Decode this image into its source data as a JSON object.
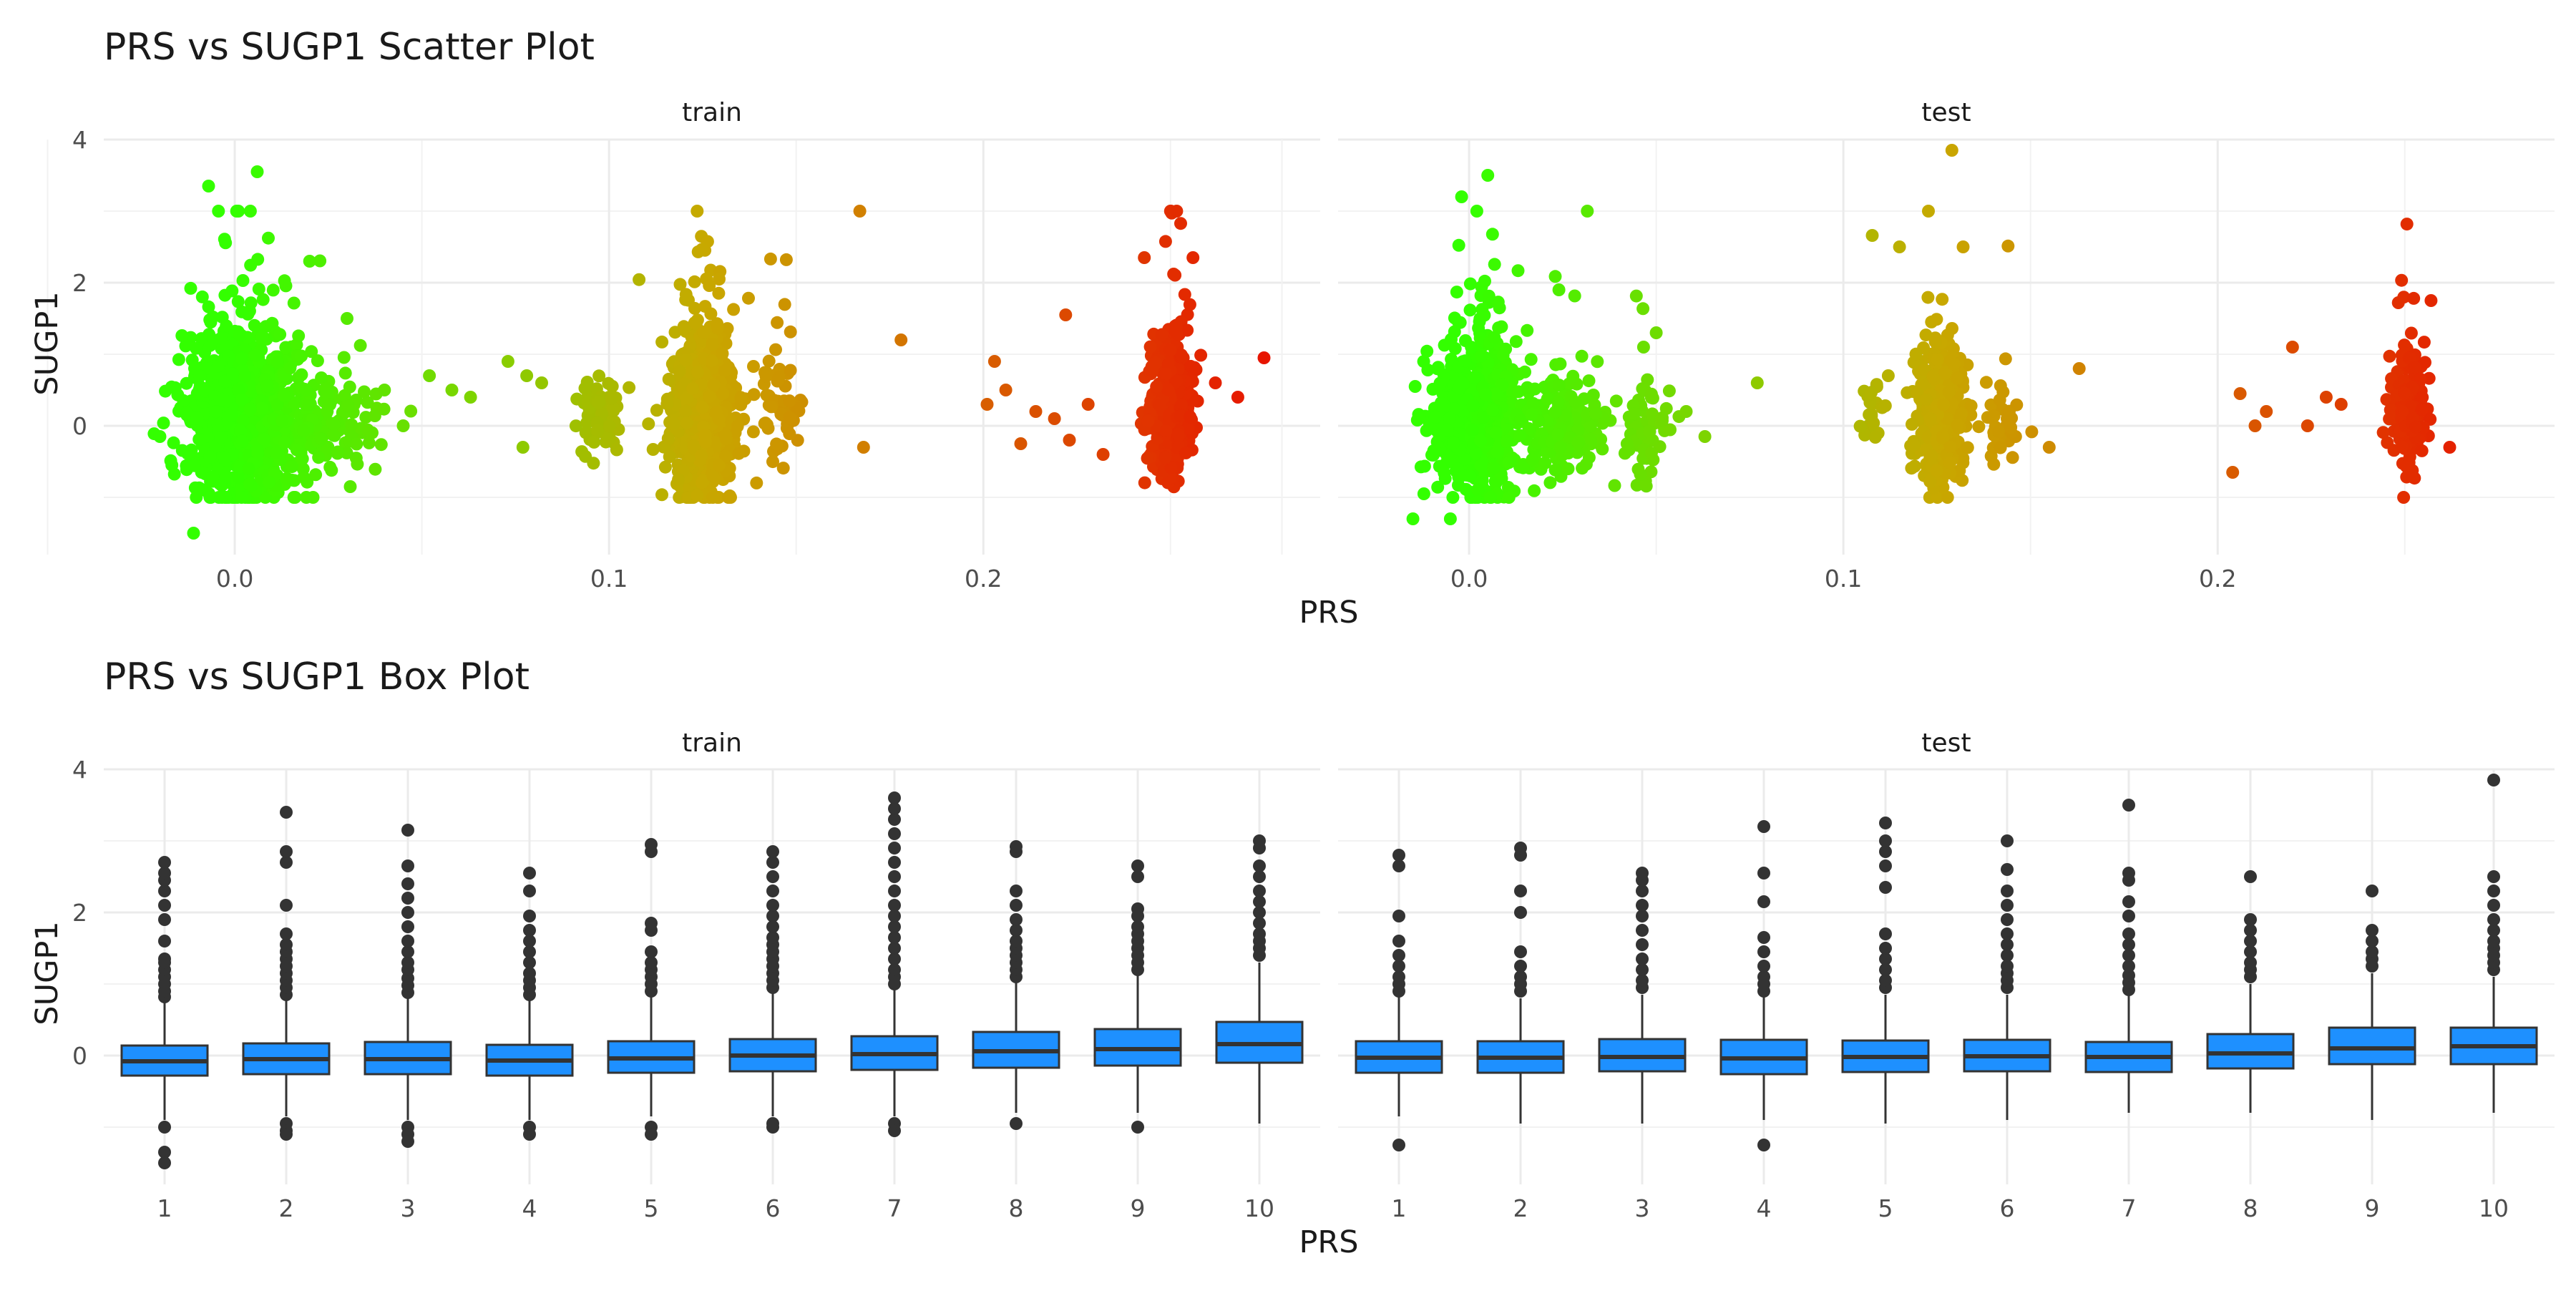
{
  "chart_data": [
    {
      "type": "scatter",
      "title": "PRS vs SUGP1 Scatter Plot",
      "xlabel": "PRS",
      "ylabel": "SUGP1",
      "xlim": [
        -0.035,
        0.29
      ],
      "ylim": [
        -1.8,
        4.0
      ],
      "x_ticks": [
        "0.0",
        "0.1",
        "0.2"
      ],
      "y_ticks": [
        "0",
        "2",
        "4"
      ],
      "color_gradient": {
        "low": "#33ff00",
        "mid": "#c8a800",
        "high": "#e81000",
        "range": [
          0,
          0.28
        ]
      },
      "facets": [
        {
          "label": "train",
          "clusters": [
            {
              "x_center": 0.002,
              "x_spread": 0.012,
              "y_center": 0.1,
              "y_spread": 0.55,
              "n": 950
            },
            {
              "x_center": 0.025,
              "x_spread": 0.012,
              "y_center": 0.0,
              "y_spread": 0.3,
              "n": 150
            },
            {
              "x_center": 0.125,
              "x_spread": 0.007,
              "y_center": 0.15,
              "y_spread": 0.55,
              "n": 850
            },
            {
              "x_center": 0.098,
              "x_spread": 0.005,
              "y_center": 0.1,
              "y_spread": 0.3,
              "n": 70
            },
            {
              "x_center": 0.145,
              "x_spread": 0.005,
              "y_center": 0.2,
              "y_spread": 0.35,
              "n": 60
            },
            {
              "x_center": 0.25,
              "x_spread": 0.005,
              "y_center": 0.25,
              "y_spread": 0.45,
              "n": 500
            }
          ],
          "points": [
            {
              "x": -0.02,
              "y": -0.15
            },
            {
              "x": -0.011,
              "y": -1.5
            },
            {
              "x": -0.007,
              "y": 3.35
            },
            {
              "x": 0.006,
              "y": 3.55
            },
            {
              "x": 0.02,
              "y": 2.3
            },
            {
              "x": 0.03,
              "y": 1.5
            },
            {
              "x": 0.04,
              "y": 0.5
            },
            {
              "x": 0.045,
              "y": 0.0
            },
            {
              "x": 0.052,
              "y": 0.7
            },
            {
              "x": 0.058,
              "y": 0.5
            },
            {
              "x": 0.063,
              "y": 0.4
            },
            {
              "x": 0.073,
              "y": 0.9
            },
            {
              "x": 0.078,
              "y": 0.7
            },
            {
              "x": 0.082,
              "y": 0.6
            },
            {
              "x": 0.077,
              "y": -0.3
            },
            {
              "x": 0.167,
              "y": 3.0
            },
            {
              "x": 0.168,
              "y": -0.3
            },
            {
              "x": 0.178,
              "y": 1.2
            },
            {
              "x": 0.201,
              "y": 0.3
            },
            {
              "x": 0.203,
              "y": 0.9
            },
            {
              "x": 0.206,
              "y": 0.5
            },
            {
              "x": 0.21,
              "y": -0.25
            },
            {
              "x": 0.214,
              "y": 0.2
            },
            {
              "x": 0.219,
              "y": 0.1
            },
            {
              "x": 0.222,
              "y": 1.55
            },
            {
              "x": 0.223,
              "y": -0.2
            },
            {
              "x": 0.228,
              "y": 0.3
            },
            {
              "x": 0.232,
              "y": -0.4
            },
            {
              "x": 0.243,
              "y": 2.35
            },
            {
              "x": 0.256,
              "y": 2.35
            },
            {
              "x": 0.262,
              "y": 0.6
            },
            {
              "x": 0.268,
              "y": 0.4
            },
            {
              "x": 0.275,
              "y": 0.95
            }
          ]
        },
        {
          "label": "test",
          "clusters": [
            {
              "x_center": 0.002,
              "x_spread": 0.01,
              "y_center": 0.1,
              "y_spread": 0.55,
              "n": 600
            },
            {
              "x_center": 0.025,
              "x_spread": 0.01,
              "y_center": 0.0,
              "y_spread": 0.3,
              "n": 180
            },
            {
              "x_center": 0.047,
              "x_spread": 0.005,
              "y_center": 0.0,
              "y_spread": 0.3,
              "n": 60
            },
            {
              "x_center": 0.126,
              "x_spread": 0.005,
              "y_center": 0.15,
              "y_spread": 0.5,
              "n": 400
            },
            {
              "x_center": 0.142,
              "x_spread": 0.004,
              "y_center": 0.1,
              "y_spread": 0.3,
              "n": 35
            },
            {
              "x_center": 0.108,
              "x_spread": 0.003,
              "y_center": 0.1,
              "y_spread": 0.3,
              "n": 20
            },
            {
              "x_center": 0.251,
              "x_spread": 0.004,
              "y_center": 0.2,
              "y_spread": 0.4,
              "n": 180
            }
          ],
          "points": [
            {
              "x": -0.002,
              "y": 3.2
            },
            {
              "x": 0.005,
              "y": 3.5
            },
            {
              "x": -0.015,
              "y": -1.3
            },
            {
              "x": -0.005,
              "y": -1.3
            },
            {
              "x": 0.024,
              "y": 1.9
            },
            {
              "x": 0.05,
              "y": 1.3
            },
            {
              "x": 0.058,
              "y": 0.2
            },
            {
              "x": 0.063,
              "y": -0.15
            },
            {
              "x": 0.077,
              "y": 0.6
            },
            {
              "x": 0.112,
              "y": 0.7
            },
            {
              "x": 0.129,
              "y": 3.85
            },
            {
              "x": 0.115,
              "y": 2.5
            },
            {
              "x": 0.132,
              "y": 2.5
            },
            {
              "x": 0.163,
              "y": 0.8
            },
            {
              "x": 0.155,
              "y": -0.3
            },
            {
              "x": 0.204,
              "y": -0.65
            },
            {
              "x": 0.206,
              "y": 0.45
            },
            {
              "x": 0.21,
              "y": 0.0
            },
            {
              "x": 0.213,
              "y": 0.2
            },
            {
              "x": 0.22,
              "y": 1.1
            },
            {
              "x": 0.224,
              "y": 0.0
            },
            {
              "x": 0.229,
              "y": 0.4
            },
            {
              "x": 0.233,
              "y": 0.3
            },
            {
              "x": 0.257,
              "y": 1.75
            },
            {
              "x": 0.252,
              "y": -0.7
            },
            {
              "x": 0.262,
              "y": -0.3
            }
          ]
        }
      ]
    },
    {
      "type": "box",
      "title": "PRS vs SUGP1 Box Plot",
      "xlabel": "PRS",
      "ylabel": "SUGP1",
      "ylim": [
        -1.8,
        4.0
      ],
      "y_ticks": [
        "0",
        "2",
        "4"
      ],
      "categories": [
        "1",
        "2",
        "3",
        "4",
        "5",
        "6",
        "7",
        "8",
        "9",
        "10"
      ],
      "box_color": "#1e90ff",
      "facets": [
        {
          "label": "train",
          "boxes": [
            {
              "q1": -0.28,
              "median": -0.08,
              "q3": 0.14,
              "whisker_low": -0.9,
              "whisker_high": 0.75,
              "outliers": [
                0.82,
                0.9,
                1.0,
                1.1,
                1.2,
                1.3,
                1.35,
                1.6,
                1.9,
                2.1,
                2.3,
                2.45,
                2.55,
                2.7,
                -1.0,
                -1.35,
                -1.5
              ]
            },
            {
              "q1": -0.26,
              "median": -0.05,
              "q3": 0.17,
              "whisker_low": -0.85,
              "whisker_high": 0.78,
              "outliers": [
                0.85,
                0.95,
                1.05,
                1.15,
                1.25,
                1.35,
                1.45,
                1.55,
                1.7,
                2.1,
                2.7,
                2.85,
                3.4,
                -0.95,
                -1.05,
                -1.1
              ]
            },
            {
              "q1": -0.26,
              "median": -0.05,
              "q3": 0.19,
              "whisker_low": -0.9,
              "whisker_high": 0.82,
              "outliers": [
                0.88,
                0.98,
                1.08,
                1.2,
                1.3,
                1.45,
                1.6,
                1.8,
                2.0,
                2.2,
                2.4,
                2.65,
                3.15,
                -1.0,
                -1.1,
                -1.2
              ]
            },
            {
              "q1": -0.28,
              "median": -0.07,
              "q3": 0.15,
              "whisker_low": -0.9,
              "whisker_high": 0.78,
              "outliers": [
                0.85,
                0.95,
                1.05,
                1.15,
                1.3,
                1.45,
                1.6,
                1.75,
                1.95,
                2.3,
                2.55,
                -1.0,
                -1.1
              ]
            },
            {
              "q1": -0.24,
              "median": -0.04,
              "q3": 0.2,
              "whisker_low": -0.85,
              "whisker_high": 0.82,
              "outliers": [
                0.9,
                1.0,
                1.1,
                1.2,
                1.3,
                1.45,
                1.75,
                1.85,
                2.85,
                2.95,
                -1.0,
                -1.1
              ]
            },
            {
              "q1": -0.22,
              "median": 0.0,
              "q3": 0.23,
              "whisker_low": -0.85,
              "whisker_high": 0.88,
              "outliers": [
                0.95,
                1.05,
                1.15,
                1.25,
                1.35,
                1.45,
                1.55,
                1.65,
                1.8,
                1.95,
                2.1,
                2.3,
                2.5,
                2.7,
                2.85,
                -0.95,
                -1.0
              ]
            },
            {
              "q1": -0.2,
              "median": 0.02,
              "q3": 0.27,
              "whisker_low": -0.85,
              "whisker_high": 0.95,
              "outliers": [
                1.0,
                1.1,
                1.2,
                1.35,
                1.5,
                1.65,
                1.8,
                1.95,
                2.1,
                2.3,
                2.5,
                2.7,
                2.9,
                3.1,
                3.3,
                3.45,
                3.6,
                -0.95,
                -1.05
              ]
            },
            {
              "q1": -0.17,
              "median": 0.06,
              "q3": 0.33,
              "whisker_low": -0.8,
              "whisker_high": 1.05,
              "outliers": [
                1.1,
                1.2,
                1.3,
                1.4,
                1.5,
                1.6,
                1.75,
                1.9,
                2.1,
                2.3,
                2.85,
                2.92,
                -0.95
              ]
            },
            {
              "q1": -0.14,
              "median": 0.09,
              "q3": 0.37,
              "whisker_low": -0.8,
              "whisker_high": 1.12,
              "outliers": [
                1.2,
                1.3,
                1.4,
                1.5,
                1.6,
                1.7,
                1.8,
                1.95,
                2.05,
                2.5,
                2.65,
                -1.0
              ]
            },
            {
              "q1": -0.1,
              "median": 0.16,
              "q3": 0.47,
              "whisker_low": -0.95,
              "whisker_high": 1.3,
              "outliers": [
                1.4,
                1.5,
                1.6,
                1.7,
                1.85,
                2.0,
                2.15,
                2.3,
                2.5,
                2.65,
                2.9,
                3.0
              ]
            }
          ]
        },
        {
          "label": "test",
          "boxes": [
            {
              "q1": -0.24,
              "median": -0.03,
              "q3": 0.2,
              "whisker_low": -0.85,
              "whisker_high": 0.82,
              "outliers": [
                0.9,
                1.0,
                1.1,
                1.25,
                1.4,
                1.6,
                1.95,
                2.65,
                2.8,
                -1.25
              ]
            },
            {
              "q1": -0.24,
              "median": -0.03,
              "q3": 0.2,
              "whisker_low": -0.95,
              "whisker_high": 0.8,
              "outliers": [
                0.9,
                1.0,
                1.1,
                1.25,
                1.45,
                2.0,
                2.3,
                2.8,
                2.9
              ]
            },
            {
              "q1": -0.22,
              "median": -0.02,
              "q3": 0.23,
              "whisker_low": -0.95,
              "whisker_high": 0.85,
              "outliers": [
                0.95,
                1.05,
                1.2,
                1.35,
                1.55,
                1.75,
                1.95,
                2.1,
                2.3,
                2.45,
                2.55
              ]
            },
            {
              "q1": -0.26,
              "median": -0.04,
              "q3": 0.22,
              "whisker_low": -0.9,
              "whisker_high": 0.82,
              "outliers": [
                0.9,
                1.0,
                1.1,
                1.25,
                1.45,
                1.65,
                2.15,
                2.55,
                3.2,
                -1.25
              ]
            },
            {
              "q1": -0.23,
              "median": -0.02,
              "q3": 0.21,
              "whisker_low": -0.95,
              "whisker_high": 0.85,
              "outliers": [
                0.95,
                1.05,
                1.2,
                1.35,
                1.5,
                1.7,
                2.35,
                2.65,
                2.85,
                3.0,
                3.25
              ]
            },
            {
              "q1": -0.22,
              "median": -0.01,
              "q3": 0.22,
              "whisker_low": -0.9,
              "whisker_high": 0.85,
              "outliers": [
                0.95,
                1.05,
                1.15,
                1.25,
                1.4,
                1.55,
                1.7,
                1.9,
                2.1,
                2.3,
                2.6,
                3.0
              ]
            },
            {
              "q1": -0.23,
              "median": -0.02,
              "q3": 0.19,
              "whisker_low": -0.8,
              "whisker_high": 0.85,
              "outliers": [
                0.92,
                1.02,
                1.12,
                1.25,
                1.4,
                1.55,
                1.7,
                1.95,
                2.15,
                2.45,
                2.55,
                3.5
              ]
            },
            {
              "q1": -0.18,
              "median": 0.03,
              "q3": 0.3,
              "whisker_low": -0.8,
              "whisker_high": 1.0,
              "outliers": [
                1.1,
                1.2,
                1.3,
                1.45,
                1.6,
                1.75,
                1.9,
                2.5
              ]
            },
            {
              "q1": -0.12,
              "median": 0.1,
              "q3": 0.39,
              "whisker_low": -0.9,
              "whisker_high": 1.15,
              "outliers": [
                1.25,
                1.35,
                1.45,
                1.6,
                1.75,
                2.3
              ]
            },
            {
              "q1": -0.12,
              "median": 0.13,
              "q3": 0.39,
              "whisker_low": -0.8,
              "whisker_high": 1.1,
              "outliers": [
                1.2,
                1.3,
                1.4,
                1.5,
                1.6,
                1.75,
                1.9,
                2.1,
                2.3,
                2.5,
                3.85
              ]
            }
          ]
        }
      ]
    }
  ]
}
